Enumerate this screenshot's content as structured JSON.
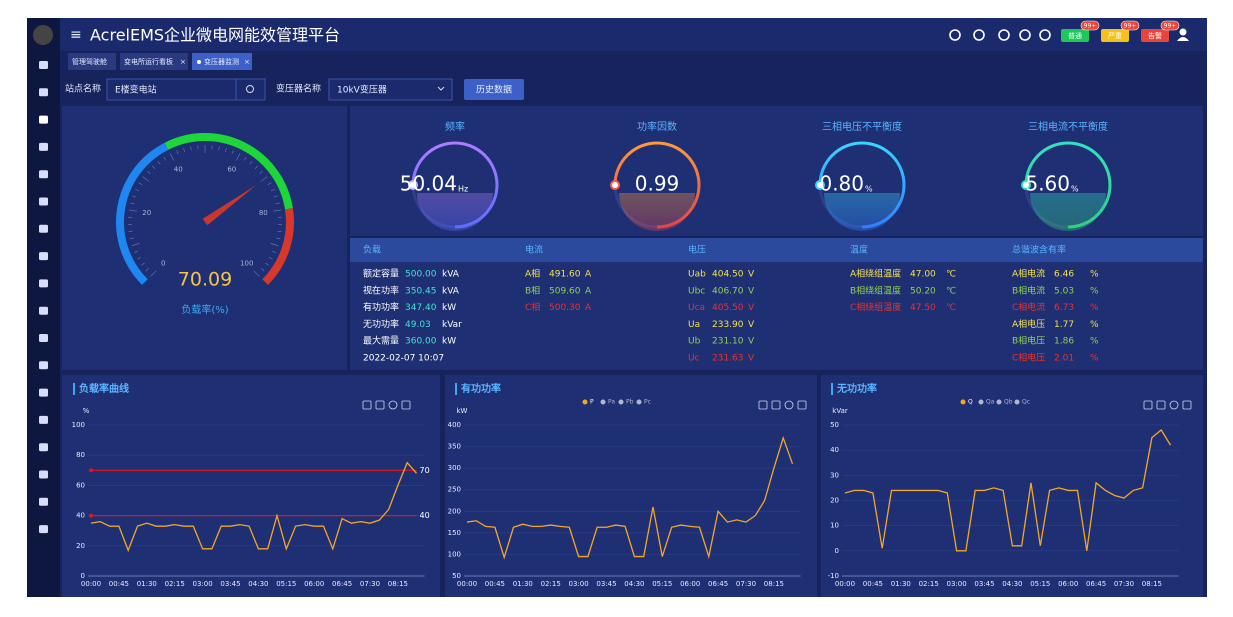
{
  "header": {
    "title": "AcrelEMS企业微电网能效管理平台",
    "badges": [
      {
        "label": "普通",
        "count": "99+"
      },
      {
        "label": "严重",
        "count": "99+"
      },
      {
        "label": "告警",
        "count": "99+"
      }
    ]
  },
  "tabs": [
    "管理驾驶舱",
    "变电所运行看板",
    "变压器监测"
  ],
  "filters": {
    "station_label": "站点名称",
    "station": "E楼变电站",
    "transformer_label": "变压器名称",
    "transformer": "10kV变压器",
    "button": "历史数据"
  },
  "indicators": [
    {
      "label": "频率",
      "value": "50.04",
      "unit": "Hz"
    },
    {
      "label": "功率因数",
      "value": "0.99"
    },
    {
      "label": "三相电压不平衡度",
      "value": "0.80",
      "unit": "%"
    },
    {
      "label": "三相电流不平衡度",
      "value": "5.60",
      "unit": "%"
    }
  ],
  "table": {
    "headers": [
      "负载",
      "电流",
      "电压",
      "温度",
      "总谐波含有率"
    ],
    "columns": [
      [
        {
          "label": "额定容量",
          "value": "500.00",
          "unit": "kVA"
        },
        {
          "label": "视在功率",
          "value": "350.45",
          "unit": "kVA"
        },
        {
          "label": "有功功率",
          "value": "347.40",
          "unit": "kW"
        },
        {
          "label": "无功功率",
          "value": "49.03",
          "unit": "kVar"
        },
        {
          "label": "最大需量",
          "value": "360.00",
          "unit": "kW"
        },
        {
          "label": "2022-02-07 10:07"
        }
      ],
      [
        {
          "label": "A相",
          "value": "491.60",
          "unit": "A"
        },
        {
          "label": "B相",
          "value": "509.60",
          "unit": "A"
        },
        {
          "label": "C相",
          "value": "500.30",
          "unit": "A"
        }
      ],
      [
        {
          "label": "Uab",
          "value": "404.50",
          "unit": "V"
        },
        {
          "label": "Ubc",
          "value": "406.70",
          "unit": "V"
        },
        {
          "label": "Uca",
          "value": "405.50",
          "unit": "V"
        },
        {
          "label": "Ua",
          "value": "233.90",
          "unit": "V"
        },
        {
          "label": "Ub",
          "value": "231.10",
          "unit": "V"
        },
        {
          "label": "Uc",
          "value": "231.63",
          "unit": "V"
        }
      ],
      [
        {
          "label": "A相绕组温度",
          "value": "47.00",
          "unit": "℃"
        },
        {
          "label": "B相绕组温度",
          "value": "50.20",
          "unit": "℃"
        },
        {
          "label": "C相绕组温度",
          "value": "47.50",
          "unit": "℃"
        }
      ],
      [
        {
          "label": "A相电流",
          "value": "6.46",
          "unit": "%"
        },
        {
          "label": "B相电流",
          "value": "5.03",
          "unit": "%"
        },
        {
          "label": "C相电流",
          "value": "6.73",
          "unit": "%"
        },
        {
          "label": "A相电压",
          "value": "1.77",
          "unit": "%"
        },
        {
          "label": "B相电压",
          "value": "1.86",
          "unit": "%"
        },
        {
          "label": "C相电压",
          "value": "2.01",
          "unit": "%"
        }
      ]
    ]
  },
  "chart_data": [
    {
      "type": "gauge",
      "value": 70.09,
      "label": "负载率(%)",
      "range": [
        0,
        100
      ],
      "ticks": [
        0,
        20,
        40,
        60,
        80,
        100
      ],
      "bands": [
        {
          "to": 40,
          "color": "#1e88f0"
        },
        {
          "to": 80,
          "color": "#1fd63a"
        },
        {
          "to": 100,
          "color": "#d8382c"
        }
      ]
    },
    {
      "type": "line",
      "title": "负载率曲线",
      "y_unit": "%",
      "categories": [
        "00:00",
        null,
        null,
        "00:45",
        null,
        null,
        "01:30",
        null,
        null,
        "02:15",
        null,
        null,
        "03:00",
        null,
        null,
        "03:45",
        null,
        null,
        "04:30",
        null,
        null,
        "05:15",
        null,
        null,
        "06:00",
        null,
        null,
        "06:45",
        null,
        null,
        "07:30",
        null,
        null,
        "08:15",
        null,
        null
      ],
      "series": [
        {
          "color": "#f5a623",
          "values": [
            35,
            36,
            33,
            33,
            17,
            33,
            35,
            33,
            33,
            34,
            33,
            33,
            18,
            18,
            33,
            33,
            34,
            33,
            18,
            18,
            40,
            18,
            33,
            34,
            33,
            33,
            18,
            38,
            35,
            36,
            35,
            37,
            44,
            60,
            75,
            68
          ]
        }
      ],
      "mark_lines": [
        70,
        40
      ],
      "mark_line_color": "#e01818",
      "ylim": [
        0,
        100
      ],
      "yticks": [
        0,
        20,
        40,
        60,
        80,
        100
      ],
      "grid": true
    },
    {
      "type": "line",
      "title": "有功功率",
      "y_unit": "kW",
      "categories": [
        "00:00",
        null,
        null,
        "00:45",
        null,
        null,
        "01:30",
        null,
        null,
        "02:15",
        null,
        null,
        "03:00",
        null,
        null,
        "03:45",
        null,
        null,
        "04:30",
        null,
        null,
        "05:15",
        null,
        null,
        "06:00",
        null,
        null,
        "06:45",
        null,
        null,
        "07:30",
        null,
        null,
        "08:15",
        null,
        null
      ],
      "series": [
        {
          "name": "P",
          "color": "#f5a623",
          "values": [
            175,
            178,
            165,
            163,
            93,
            163,
            170,
            165,
            165,
            168,
            165,
            163,
            95,
            95,
            163,
            163,
            168,
            165,
            95,
            95,
            210,
            95,
            163,
            168,
            165,
            163,
            95,
            200,
            175,
            180,
            175,
            190,
            225,
            300,
            370,
            310
          ]
        }
      ],
      "inactive_series": [
        "Pa",
        "Pb",
        "Pc"
      ],
      "ylim": [
        50,
        400
      ],
      "yticks": [
        50,
        100,
        150,
        200,
        250,
        300,
        350,
        400
      ],
      "grid": true
    },
    {
      "type": "line",
      "title": "无功功率",
      "y_unit": "kVar",
      "categories": [
        "00:00",
        null,
        null,
        "00:45",
        null,
        null,
        "01:30",
        null,
        null,
        "02:15",
        null,
        null,
        "03:00",
        null,
        null,
        "03:45",
        null,
        null,
        "04:30",
        null,
        null,
        "05:15",
        null,
        null,
        "06:00",
        null,
        null,
        "06:45",
        null,
        null,
        "07:30",
        null,
        null,
        "08:15",
        null,
        null
      ],
      "series": [
        {
          "name": "Q",
          "color": "#f5a623",
          "values": [
            23,
            24,
            24,
            23,
            1,
            24,
            24,
            24,
            24,
            24,
            24,
            23,
            0,
            0,
            24,
            24,
            25,
            24,
            2,
            2,
            27,
            2,
            24,
            25,
            24,
            24,
            0,
            27,
            24,
            22,
            21,
            24,
            25,
            45,
            48,
            42
          ]
        }
      ],
      "inactive_series": [
        "Qa",
        "Qb",
        "Qc"
      ],
      "ylim": [
        -10,
        50
      ],
      "yticks": [
        -10,
        0,
        10,
        20,
        30,
        40,
        50
      ],
      "grid": true
    }
  ]
}
